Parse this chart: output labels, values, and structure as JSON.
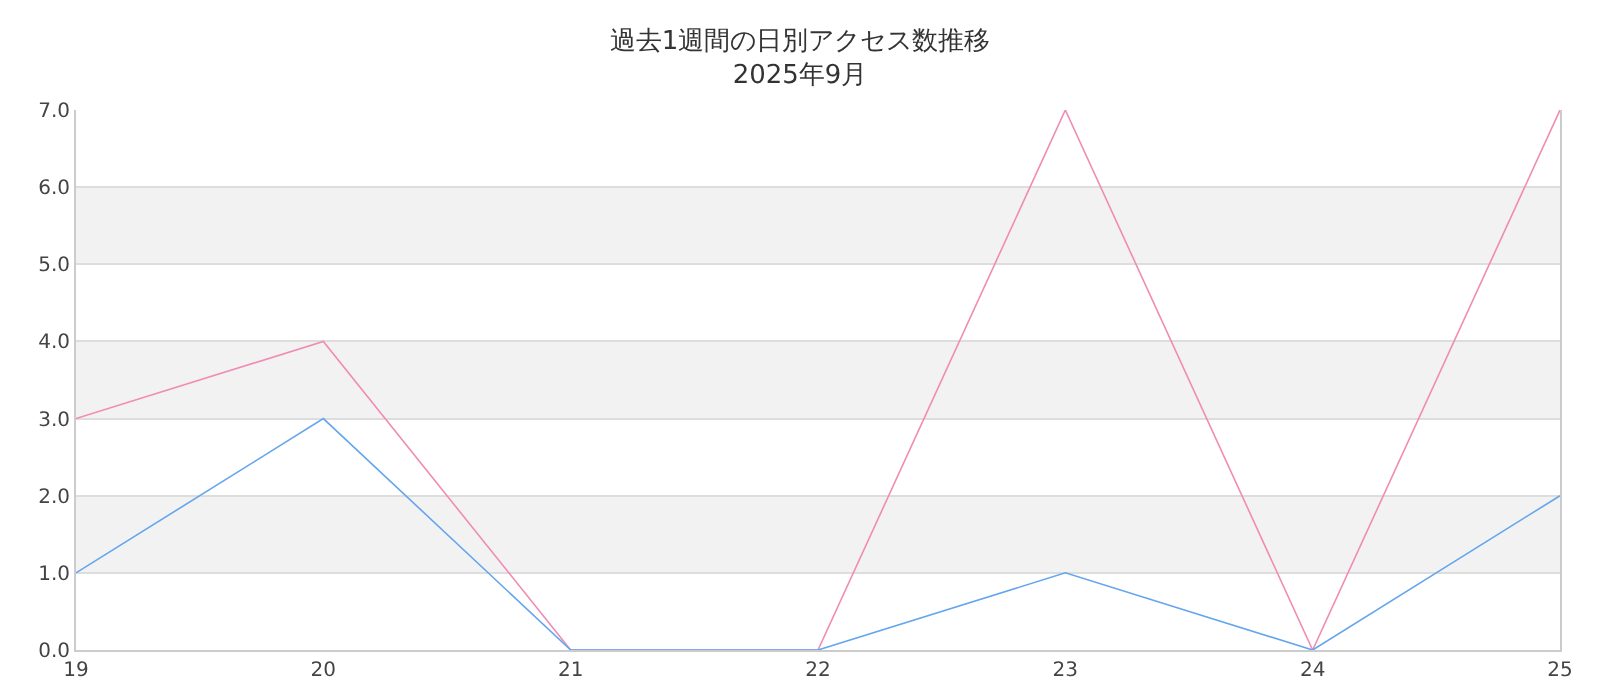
{
  "chart_data": {
    "type": "line",
    "title": "過去1週間の日別アクセス数推移",
    "subtitle": "2025年9月",
    "x": [
      19,
      20,
      21,
      22,
      23,
      24,
      25
    ],
    "series": [
      {
        "color": "#f08cb4",
        "values": [
          3,
          4,
          0,
          0,
          7,
          0,
          7
        ]
      },
      {
        "color": "#64a6ee",
        "values": [
          1,
          3,
          0,
          0,
          1,
          0,
          2
        ]
      }
    ],
    "xlim": [
      19,
      25
    ],
    "xticks": [
      19,
      20,
      21,
      22,
      23,
      24,
      25
    ],
    "ylim": [
      0,
      7
    ],
    "yticks": [
      {
        "value": 0,
        "label": "0.0"
      },
      {
        "value": 1,
        "label": "1.0"
      },
      {
        "value": 2,
        "label": "2.0"
      },
      {
        "value": 3,
        "label": "3.0"
      },
      {
        "value": 4,
        "label": "4.0"
      },
      {
        "value": 5,
        "label": "5.0"
      },
      {
        "value": 6,
        "label": "6.0"
      },
      {
        "value": 7,
        "label": "7.0"
      }
    ],
    "bands": [
      {
        "axis": "y",
        "from": 1,
        "to": 2,
        "color": "#f2f2f2"
      },
      {
        "axis": "y",
        "from": 3,
        "to": 4,
        "color": "#f2f2f2"
      },
      {
        "axis": "y",
        "from": 5,
        "to": 6,
        "color": "#f2f2f2"
      }
    ],
    "grid": "y",
    "marker": "none",
    "line_style": "solid"
  }
}
